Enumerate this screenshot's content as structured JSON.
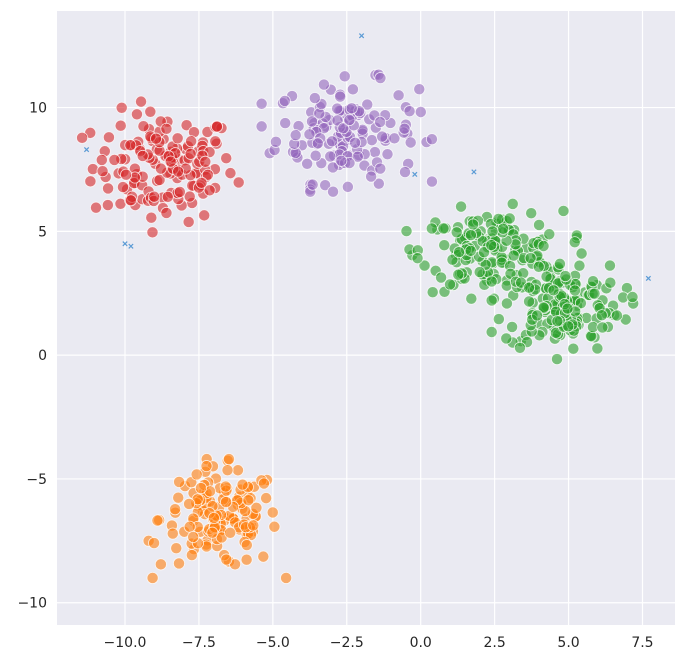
{
  "chart_data": {
    "type": "scatter",
    "title": "",
    "xlabel": "",
    "ylabel": "",
    "xlim": [
      -12.3,
      8.6
    ],
    "ylim": [
      -10.9,
      13.9
    ],
    "x_ticks": [
      -10.0,
      -7.5,
      -5.0,
      -2.5,
      0.0,
      2.5,
      5.0,
      7.5
    ],
    "x_tick_labels": [
      "−10.0",
      "−7.5",
      "−5.0",
      "−2.5",
      "0.0",
      "2.5",
      "5.0",
      "7.5"
    ],
    "y_ticks": [
      -10,
      -5,
      0,
      5,
      10
    ],
    "y_tick_labels": [
      "−10",
      "−5",
      "0",
      "5",
      "10"
    ],
    "grid": true,
    "legend": "none",
    "background_color": "#eaeaf2",
    "clusters": [
      {
        "color": "#d62728",
        "center": [
          -8.7,
          7.6
        ],
        "spread": [
          1.2,
          1.1
        ],
        "count": 150
      },
      {
        "color": "#9467bd",
        "center": [
          -2.5,
          9.0
        ],
        "spread": [
          1.2,
          1.0
        ],
        "count": 150
      },
      {
        "color": "#ff7f0e",
        "center": [
          -6.8,
          -6.6
        ],
        "spread": [
          1.0,
          1.0
        ],
        "count": 150
      },
      {
        "color": "#2ca02c",
        "center": [
          2.4,
          4.2
        ],
        "spread": [
          1.2,
          0.8
        ],
        "count": 160
      },
      {
        "color": "#2ca02c",
        "center": [
          4.8,
          2.0
        ],
        "spread": [
          1.0,
          0.9
        ],
        "count": 160
      }
    ],
    "outliers": {
      "color": "#5b9bd5",
      "marker": "x",
      "points": [
        [
          -11.3,
          8.3
        ],
        [
          -2.0,
          12.9
        ],
        [
          -10.0,
          4.5
        ],
        [
          -9.8,
          4.4
        ],
        [
          -0.2,
          7.3
        ],
        [
          1.8,
          7.4
        ],
        [
          7.7,
          3.1
        ]
      ]
    }
  }
}
